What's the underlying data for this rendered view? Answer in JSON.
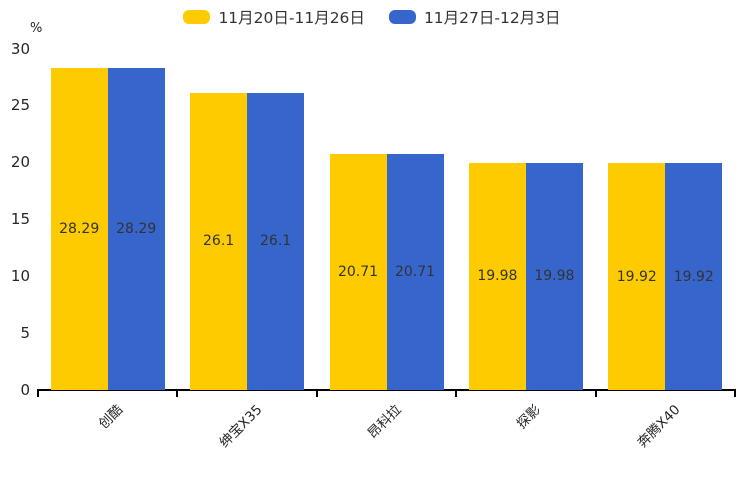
{
  "chart_data": {
    "type": "bar",
    "title": "",
    "categories": [
      "创酷",
      "绅宝X35",
      "昂科拉",
      "探影",
      "奔腾X40"
    ],
    "series": [
      {
        "name": "11月20日-11月26日",
        "color": "#FDCB00",
        "values": [
          28.29,
          26.1,
          20.71,
          19.98,
          19.92
        ]
      },
      {
        "name": "11月27日-12月3日",
        "color": "#3666CC",
        "values": [
          28.29,
          26.1,
          20.71,
          19.98,
          19.92
        ]
      }
    ],
    "xlabel": "",
    "ylabel": "%",
    "ylim": [
      0,
      30
    ],
    "yticks": [
      0,
      5,
      10,
      15,
      20,
      25,
      30
    ],
    "grid": false,
    "legend_position": "top",
    "data_labels": true,
    "data_label_color": "#333333",
    "axis_color": "#000000"
  }
}
